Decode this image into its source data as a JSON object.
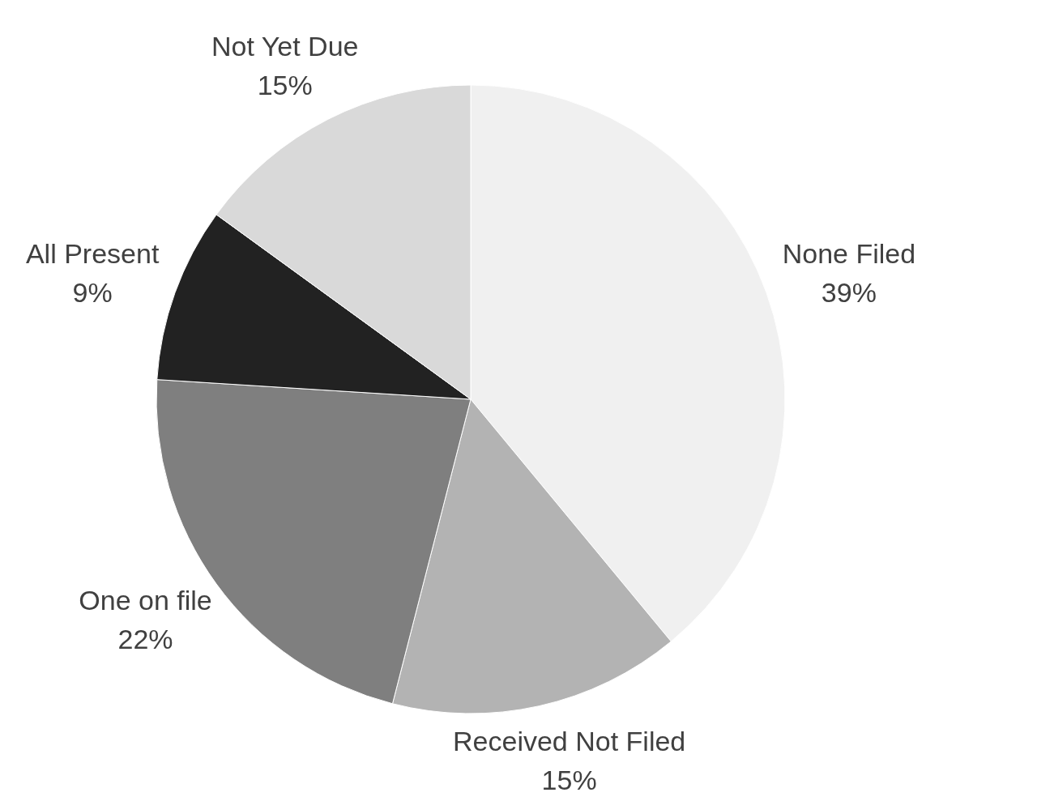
{
  "chart_data": {
    "type": "pie",
    "categories": [
      "None Filed",
      "Received Not Filed",
      "One on file",
      "All Present",
      "Not Yet Due"
    ],
    "values": [
      39,
      15,
      22,
      9,
      15
    ],
    "value_labels": [
      "39%",
      "15%",
      "22%",
      "9%",
      "15%"
    ],
    "colors": [
      "#f0f0f0",
      "#b3b3b3",
      "#7f7f7f",
      "#222222",
      "#d9d9d9"
    ],
    "legend": false
  }
}
